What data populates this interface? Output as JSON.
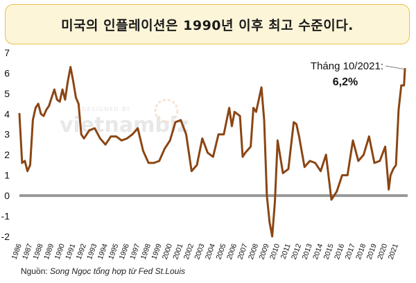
{
  "title": "미국의 인플레이션은 1990년 이후 최고 수준이다.",
  "source": {
    "label": "Nguồn:",
    "text": "Song Ngọc tổng hợp từ Fed St.Louis"
  },
  "watermark": {
    "top": "DESIGNED BY",
    "brand": "vietnambiz"
  },
  "colors": {
    "line": "#8b4513",
    "title_bg": "#fdf5d8",
    "title_border": "#e8c14a",
    "baseline": "#9a9a9a"
  },
  "annotation": {
    "label": "Tháng 10/2021:",
    "value": "6,2%"
  },
  "chart_data": {
    "type": "line",
    "title": "미국의 인플레이션은 1990년 이후 최고 수준이다.",
    "xlabel": "",
    "ylabel": "",
    "ylim": [
      -2,
      7
    ],
    "yticks": [
      -2,
      -1,
      0,
      1,
      2,
      3,
      4,
      5,
      6,
      7
    ],
    "xlim": [
      1986.0,
      2021.8333
    ],
    "xticks": [
      "1986",
      "1987",
      "1988",
      "1989",
      "1990",
      "1991",
      "1992",
      "1993",
      "1994",
      "1995",
      "1996",
      "1997",
      "1998",
      "1999",
      "2000",
      "2001",
      "2002",
      "2003",
      "2004",
      "2005",
      "2006",
      "2007",
      "2008",
      "2009",
      "2010",
      "2011",
      "2012",
      "2013",
      "2014",
      "2015",
      "2016",
      "2017",
      "2018",
      "2019",
      "2020",
      "2021"
    ],
    "grid": false,
    "legend": "none",
    "series": [
      {
        "x": [
          1986.0,
          1986.25,
          1986.5,
          1986.75,
          1987.0,
          1987.25,
          1987.5,
          1987.75,
          1988.0,
          1988.25,
          1988.5,
          1988.75,
          1989.0,
          1989.25,
          1989.5,
          1989.75,
          1990.0,
          1990.25,
          1990.5,
          1990.75,
          1991.0,
          1991.25,
          1991.5,
          1991.75,
          1992.0,
          1992.5,
          1993.0,
          1993.5,
          1994.0,
          1994.5,
          1995.0,
          1995.5,
          1996.0,
          1996.5,
          1997.0,
          1997.5,
          1998.0,
          1998.5,
          1999.0,
          1999.5,
          2000.0,
          2000.5,
          2001.0,
          2001.5,
          2001.75,
          2002.0,
          2002.5,
          2003.0,
          2003.5,
          2004.0,
          2004.5,
          2005.0,
          2005.5,
          2005.75,
          2006.0,
          2006.5,
          2006.75,
          2007.0,
          2007.5,
          2007.75,
          2008.0,
          2008.5,
          2008.75,
          2009.0,
          2009.25,
          2009.5,
          2009.75,
          2010.0,
          2010.5,
          2011.0,
          2011.5,
          2011.75,
          2012.0,
          2012.5,
          2013.0,
          2013.5,
          2014.0,
          2014.5,
          2015.0,
          2015.5,
          2016.0,
          2016.5,
          2017.0,
          2017.5,
          2018.0,
          2018.5,
          2019.0,
          2019.5,
          2020.0,
          2020.33,
          2020.5,
          2020.75,
          2021.0,
          2021.25,
          2021.5,
          2021.75,
          2021.8333
        ],
        "y": [
          4.0,
          1.6,
          1.7,
          1.2,
          1.5,
          3.7,
          4.3,
          4.5,
          4.0,
          3.9,
          4.2,
          4.4,
          4.8,
          5.2,
          4.7,
          4.6,
          5.2,
          4.7,
          5.6,
          6.3,
          5.6,
          4.8,
          4.5,
          3.0,
          2.8,
          3.2,
          3.3,
          2.8,
          2.5,
          2.9,
          2.9,
          2.7,
          2.8,
          3.0,
          3.3,
          2.2,
          1.6,
          1.6,
          1.7,
          2.3,
          2.7,
          3.6,
          3.7,
          3.0,
          2.1,
          1.2,
          1.5,
          2.8,
          2.1,
          1.9,
          3.0,
          3.0,
          4.3,
          3.4,
          4.1,
          3.9,
          1.9,
          2.1,
          2.4,
          4.3,
          4.1,
          5.3,
          3.7,
          0.0,
          -1.3,
          -2.0,
          -0.3,
          2.7,
          1.1,
          1.3,
          3.6,
          3.5,
          2.9,
          1.4,
          1.7,
          1.6,
          1.2,
          2.0,
          -0.2,
          0.2,
          1.0,
          1.0,
          2.7,
          1.7,
          2.0,
          2.9,
          1.6,
          1.7,
          2.4,
          0.3,
          1.0,
          1.3,
          1.5,
          4.2,
          5.4,
          5.4,
          6.2
        ]
      }
    ]
  }
}
